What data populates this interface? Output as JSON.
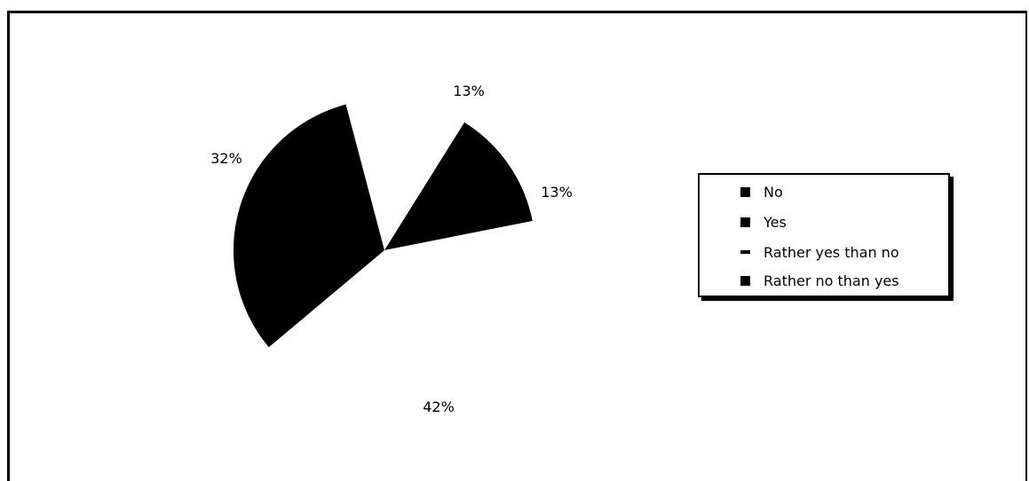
{
  "chart_data": {
    "type": "pie",
    "title": "",
    "slices": [
      {
        "name": "No",
        "value": 13,
        "label": "13%"
      },
      {
        "name": "Yes",
        "value": 13,
        "label": "13%"
      },
      {
        "name": "Rather yes than no",
        "value": 42,
        "label": "42%"
      },
      {
        "name": "Rather no than yes",
        "value": 32,
        "label": "32%"
      }
    ],
    "legend": {
      "position": "right",
      "entries": [
        "No",
        "Yes",
        "Rather yes than no",
        "Rather no than yes"
      ]
    },
    "colors": {
      "fill": "#000000",
      "background": "#ffffff"
    }
  }
}
